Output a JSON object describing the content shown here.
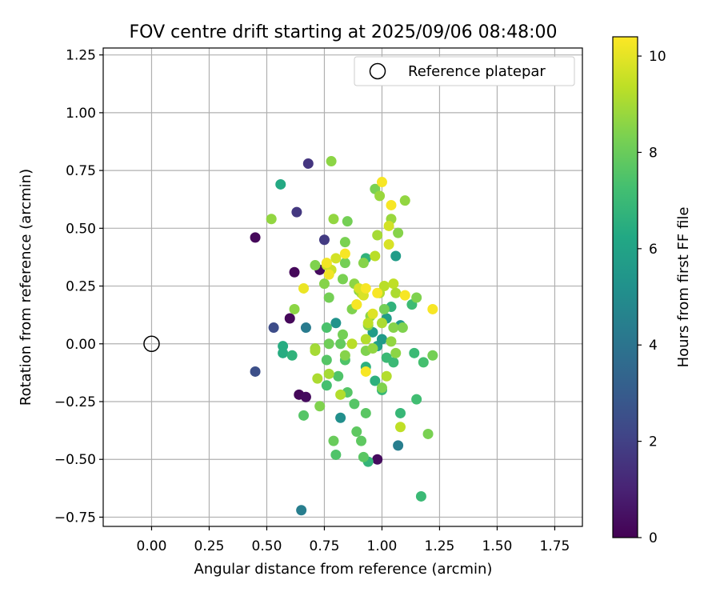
{
  "chart_data": {
    "type": "scatter",
    "title": "FOV centre drift starting at 2025/09/06 08:48:00",
    "xlabel": "Angular distance from reference (arcmin)",
    "ylabel": "Rotation from reference (arcmin)",
    "xlim": [
      -0.21,
      1.87
    ],
    "ylim": [
      -0.79,
      1.28
    ],
    "xticks": [
      "0.00",
      "0.25",
      "0.50",
      "0.75",
      "1.00",
      "1.25",
      "1.50",
      "1.75"
    ],
    "yticks": [
      "-0.75",
      "-0.50",
      "-0.25",
      "0.00",
      "0.25",
      "0.50",
      "0.75",
      "1.00",
      "1.25"
    ],
    "grid": true,
    "legend": {
      "position": "top-right",
      "entries": [
        "Reference platepar"
      ]
    },
    "reference_point": {
      "x": 0.0,
      "y": 0.0
    },
    "colorbar": {
      "label": "Hours from first FF file",
      "range": [
        0,
        10.4
      ],
      "ticks": [
        "0",
        "2",
        "4",
        "6",
        "8",
        "10"
      ],
      "colormap": "viridis"
    },
    "points": [
      {
        "x": 0.45,
        "y": 0.46,
        "h": 0.2
      },
      {
        "x": 0.6,
        "y": 0.11,
        "h": 0.2
      },
      {
        "x": 0.62,
        "y": 0.31,
        "h": 0.2
      },
      {
        "x": 0.64,
        "y": -0.22,
        "h": 0.2
      },
      {
        "x": 0.67,
        "y": -0.23,
        "h": 0.3
      },
      {
        "x": 0.73,
        "y": 0.32,
        "h": 0.3
      },
      {
        "x": 0.98,
        "y": -0.5,
        "h": 0.3
      },
      {
        "x": 0.68,
        "y": 0.78,
        "h": 1.6
      },
      {
        "x": 0.63,
        "y": 0.57,
        "h": 1.7
      },
      {
        "x": 0.75,
        "y": 0.45,
        "h": 1.8
      },
      {
        "x": 0.53,
        "y": 0.07,
        "h": 2.4
      },
      {
        "x": 0.45,
        "y": -0.12,
        "h": 2.5
      },
      {
        "x": 0.67,
        "y": 0.07,
        "h": 4.3
      },
      {
        "x": 0.65,
        "y": -0.72,
        "h": 4.4
      },
      {
        "x": 1.07,
        "y": -0.44,
        "h": 4.4
      },
      {
        "x": 0.82,
        "y": -0.32,
        "h": 5.1
      },
      {
        "x": 0.8,
        "y": 0.09,
        "h": 5.3
      },
      {
        "x": 1.06,
        "y": 0.38,
        "h": 5.7
      },
      {
        "x": 1.08,
        "y": 0.08,
        "h": 5.6
      },
      {
        "x": 0.96,
        "y": 0.05,
        "h": 5.7
      },
      {
        "x": 0.98,
        "y": -0.01,
        "h": 5.9
      },
      {
        "x": 1.0,
        "y": 0.02,
        "h": 5.6
      },
      {
        "x": 1.02,
        "y": 0.11,
        "h": 5.7
      },
      {
        "x": 0.56,
        "y": 0.69,
        "h": 6.3
      },
      {
        "x": 0.57,
        "y": -0.01,
        "h": 6.4
      },
      {
        "x": 0.57,
        "y": -0.04,
        "h": 6.4
      },
      {
        "x": 0.61,
        "y": -0.05,
        "h": 6.7
      },
      {
        "x": 0.93,
        "y": 0.37,
        "h": 6.7
      },
      {
        "x": 0.93,
        "y": -0.1,
        "h": 6.6
      },
      {
        "x": 0.94,
        "y": -0.51,
        "h": 6.8
      },
      {
        "x": 0.97,
        "y": -0.16,
        "h": 6.6
      },
      {
        "x": 1.0,
        "y": -0.2,
        "h": 6.9
      },
      {
        "x": 1.04,
        "y": 0.16,
        "h": 6.7
      },
      {
        "x": 1.05,
        "y": -0.08,
        "h": 7.0
      },
      {
        "x": 1.08,
        "y": -0.3,
        "h": 6.9
      },
      {
        "x": 1.13,
        "y": 0.17,
        "h": 7.1
      },
      {
        "x": 1.14,
        "y": -0.04,
        "h": 7.0
      },
      {
        "x": 1.15,
        "y": -0.24,
        "h": 7.2
      },
      {
        "x": 1.17,
        "y": -0.66,
        "h": 7.0
      },
      {
        "x": 1.18,
        "y": -0.08,
        "h": 7.3
      },
      {
        "x": 1.02,
        "y": -0.06,
        "h": 7.0
      },
      {
        "x": 0.76,
        "y": -0.18,
        "h": 7.3
      },
      {
        "x": 0.76,
        "y": 0.07,
        "h": 7.4
      },
      {
        "x": 0.81,
        "y": -0.14,
        "h": 7.5
      },
      {
        "x": 0.8,
        "y": -0.48,
        "h": 7.5
      },
      {
        "x": 0.66,
        "y": -0.31,
        "h": 7.6
      },
      {
        "x": 0.76,
        "y": -0.07,
        "h": 7.6
      },
      {
        "x": 0.84,
        "y": -0.07,
        "h": 7.5
      },
      {
        "x": 0.85,
        "y": -0.21,
        "h": 7.6
      },
      {
        "x": 0.88,
        "y": -0.26,
        "h": 7.6
      },
      {
        "x": 0.91,
        "y": -0.42,
        "h": 7.8
      },
      {
        "x": 0.92,
        "y": -0.49,
        "h": 7.7
      },
      {
        "x": 0.93,
        "y": -0.3,
        "h": 7.7
      },
      {
        "x": 0.89,
        "y": -0.38,
        "h": 7.8
      },
      {
        "x": 0.82,
        "y": 0.0,
        "h": 7.9
      },
      {
        "x": 0.79,
        "y": -0.42,
        "h": 8.0
      },
      {
        "x": 0.77,
        "y": 0.0,
        "h": 8.1
      },
      {
        "x": 0.85,
        "y": 0.53,
        "h": 8.2
      },
      {
        "x": 0.84,
        "y": 0.44,
        "h": 8.3
      },
      {
        "x": 0.83,
        "y": 0.28,
        "h": 8.3
      },
      {
        "x": 0.84,
        "y": 0.35,
        "h": 8.2
      },
      {
        "x": 0.77,
        "y": 0.2,
        "h": 8.2
      },
      {
        "x": 0.78,
        "y": 0.79,
        "h": 8.6
      },
      {
        "x": 0.52,
        "y": 0.54,
        "h": 8.7
      },
      {
        "x": 0.62,
        "y": 0.15,
        "h": 8.6
      },
      {
        "x": 0.71,
        "y": 0.34,
        "h": 8.4
      },
      {
        "x": 0.73,
        "y": -0.27,
        "h": 8.4
      },
      {
        "x": 0.75,
        "y": 0.26,
        "h": 8.5
      },
      {
        "x": 0.79,
        "y": 0.54,
        "h": 8.7
      },
      {
        "x": 0.83,
        "y": 0.04,
        "h": 8.2
      },
      {
        "x": 0.84,
        "y": -0.05,
        "h": 8.5
      },
      {
        "x": 0.87,
        "y": 0.15,
        "h": 8.4
      },
      {
        "x": 0.88,
        "y": 0.26,
        "h": 8.6
      },
      {
        "x": 0.9,
        "y": 0.23,
        "h": 8.5
      },
      {
        "x": 0.92,
        "y": 0.35,
        "h": 8.5
      },
      {
        "x": 0.93,
        "y": -0.03,
        "h": 8.4
      },
      {
        "x": 0.94,
        "y": 0.08,
        "h": 8.5
      },
      {
        "x": 0.95,
        "y": 0.12,
        "h": 8.6
      },
      {
        "x": 0.96,
        "y": -0.02,
        "h": 8.7
      },
      {
        "x": 0.97,
        "y": 0.67,
        "h": 8.3
      },
      {
        "x": 0.99,
        "y": 0.64,
        "h": 8.8
      },
      {
        "x": 1.0,
        "y": -0.19,
        "h": 8.4
      },
      {
        "x": 1.01,
        "y": 0.15,
        "h": 8.2
      },
      {
        "x": 1.04,
        "y": 0.01,
        "h": 8.7
      },
      {
        "x": 1.04,
        "y": 0.54,
        "h": 8.8
      },
      {
        "x": 1.05,
        "y": 0.07,
        "h": 8.5
      },
      {
        "x": 1.06,
        "y": -0.04,
        "h": 8.6
      },
      {
        "x": 1.07,
        "y": 0.48,
        "h": 8.5
      },
      {
        "x": 1.09,
        "y": 0.07,
        "h": 8.4
      },
      {
        "x": 1.1,
        "y": 0.62,
        "h": 8.7
      },
      {
        "x": 1.15,
        "y": 0.2,
        "h": 8.4
      },
      {
        "x": 1.2,
        "y": -0.39,
        "h": 8.3
      },
      {
        "x": 1.22,
        "y": -0.05,
        "h": 8.2
      },
      {
        "x": 0.71,
        "y": -0.02,
        "h": 8.9
      },
      {
        "x": 0.71,
        "y": -0.03,
        "h": 9.0
      },
      {
        "x": 0.72,
        "y": -0.15,
        "h": 9.1
      },
      {
        "x": 0.77,
        "y": -0.13,
        "h": 9.0
      },
      {
        "x": 0.82,
        "y": -0.22,
        "h": 9.2
      },
      {
        "x": 0.87,
        "y": 0.0,
        "h": 9.3
      },
      {
        "x": 0.89,
        "y": 0.17,
        "h": 9.1
      },
      {
        "x": 0.91,
        "y": 0.22,
        "h": 9.0
      },
      {
        "x": 0.93,
        "y": 0.02,
        "h": 9.2
      },
      {
        "x": 0.94,
        "y": 0.09,
        "h": 9.4
      },
      {
        "x": 0.97,
        "y": 0.38,
        "h": 9.3
      },
      {
        "x": 0.98,
        "y": 0.47,
        "h": 9.0
      },
      {
        "x": 0.99,
        "y": 0.22,
        "h": 9.2
      },
      {
        "x": 1.0,
        "y": 0.09,
        "h": 9.1
      },
      {
        "x": 1.01,
        "y": 0.25,
        "h": 9.3
      },
      {
        "x": 1.02,
        "y": -0.14,
        "h": 9.2
      },
      {
        "x": 1.05,
        "y": 0.26,
        "h": 9.4
      },
      {
        "x": 1.06,
        "y": 0.22,
        "h": 9.1
      },
      {
        "x": 1.08,
        "y": -0.36,
        "h": 9.4
      },
      {
        "x": 0.76,
        "y": 0.34,
        "h": 9.5
      },
      {
        "x": 0.78,
        "y": 0.32,
        "h": 9.6
      },
      {
        "x": 0.8,
        "y": 0.37,
        "h": 9.7
      },
      {
        "x": 0.9,
        "y": 0.24,
        "h": 9.8
      },
      {
        "x": 0.92,
        "y": 0.21,
        "h": 9.8
      },
      {
        "x": 0.96,
        "y": 0.13,
        "h": 9.9
      },
      {
        "x": 1.03,
        "y": 0.51,
        "h": 9.7
      },
      {
        "x": 1.03,
        "y": 0.43,
        "h": 9.8
      },
      {
        "x": 0.66,
        "y": 0.24,
        "h": 10.1
      },
      {
        "x": 0.76,
        "y": 0.35,
        "h": 10.2
      },
      {
        "x": 0.77,
        "y": 0.3,
        "h": 10.2
      },
      {
        "x": 0.84,
        "y": 0.39,
        "h": 10.3
      },
      {
        "x": 0.89,
        "y": 0.17,
        "h": 10.3
      },
      {
        "x": 0.93,
        "y": 0.24,
        "h": 10.3
      },
      {
        "x": 0.93,
        "y": -0.12,
        "h": 10.3
      },
      {
        "x": 0.98,
        "y": 0.22,
        "h": 10.3
      },
      {
        "x": 1.0,
        "y": 0.7,
        "h": 10.3
      },
      {
        "x": 1.04,
        "y": 0.6,
        "h": 10.3
      },
      {
        "x": 1.1,
        "y": 0.21,
        "h": 10.3
      },
      {
        "x": 1.22,
        "y": 0.15,
        "h": 10.3
      }
    ]
  }
}
